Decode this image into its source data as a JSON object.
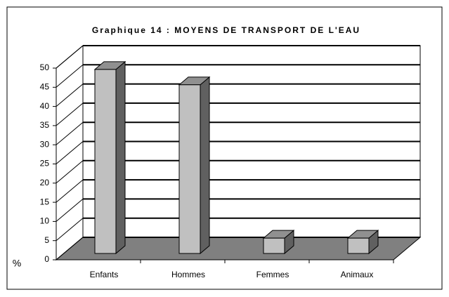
{
  "chart_data": {
    "type": "bar3d",
    "title": "Graphique 14 : MOYENS DE TRANSPORT DE L'EAU",
    "y_label": "%",
    "categories": [
      "Enfants",
      "Hommes",
      "Femmes",
      "Animaux"
    ],
    "values": [
      48,
      44,
      4,
      4
    ],
    "color": "#c0c0c0",
    "ylim": [
      0,
      50
    ],
    "yticks": [
      0,
      5,
      10,
      15,
      20,
      25,
      30,
      35,
      40,
      45,
      50
    ],
    "grid": true
  }
}
